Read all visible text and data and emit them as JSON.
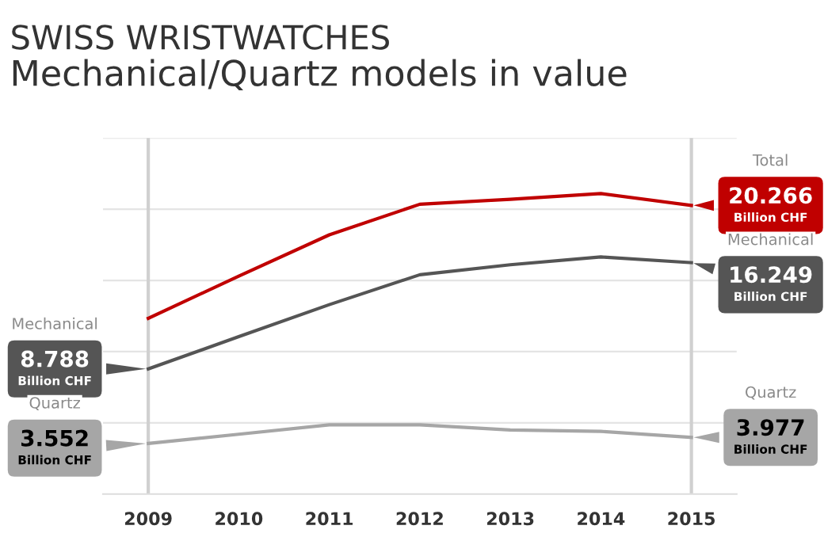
{
  "chart_data": {
    "type": "line",
    "title": "SWISS WRISTWATCHES",
    "subtitle": "Mechanical/Quartz models in value",
    "x": [
      2009,
      2010,
      2011,
      2012,
      2013,
      2014,
      2015
    ],
    "xlim": [
      2008.5,
      2015.5
    ],
    "xticks": [
      2009,
      2010,
      2011,
      2012,
      2013,
      2014,
      2015
    ],
    "ylim": [
      0,
      25
    ],
    "yticks": [
      {
        "value": 5,
        "label": null
      },
      {
        "value": 10,
        "label": null
      },
      {
        "value": 15,
        "label": null
      },
      {
        "value": 20,
        "label": null
      },
      {
        "value": 25,
        "label": null
      }
    ],
    "tick_labels": "x",
    "grid": "y",
    "legend": false,
    "marker": "none",
    "line_style": "solid",
    "series": [
      {
        "name": "Total",
        "color": "#c00000",
        "values": [
          12.34,
          15.3,
          18.2,
          20.35,
          20.7,
          21.1,
          20.266
        ],
        "value_labels": [
          null,
          null,
          null,
          null,
          null,
          null,
          "20.266"
        ]
      },
      {
        "name": "Mechanical",
        "color": "#555555",
        "values": [
          8.788,
          11.05,
          13.3,
          15.4,
          16.1,
          16.65,
          16.249
        ],
        "value_labels": [
          "8.788",
          null,
          null,
          null,
          null,
          null,
          "16.249"
        ]
      },
      {
        "name": "Quartz",
        "color": "#a6a6a6",
        "values": [
          3.552,
          4.2,
          4.86,
          4.86,
          4.5,
          4.4,
          3.977
        ],
        "value_labels": [
          "3.552",
          null,
          null,
          null,
          null,
          null,
          "3.977"
        ]
      }
    ],
    "ref_lines": [
      {
        "axis": "x",
        "value": 2009,
        "color": "#d0d0d0"
      },
      {
        "axis": "x",
        "value": 2015,
        "color": "#d0d0d0"
      }
    ],
    "annotations": [
      "Billion CHF",
      "Billion CHF",
      "Billion CHF",
      "Billion CHF",
      "Billion CHF"
    ]
  }
}
